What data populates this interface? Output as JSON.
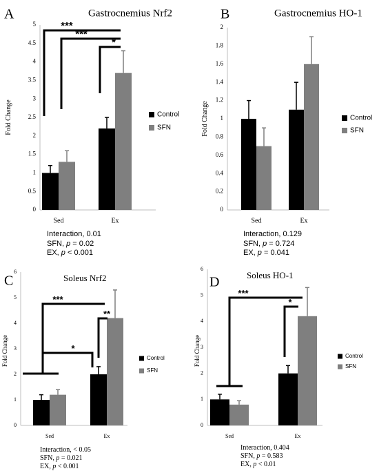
{
  "chart_data": [
    {
      "type": "bar",
      "panel_label": "A",
      "title": "Gastrocnemius Nrf2",
      "ylabel": "Fold Change",
      "categories": [
        "Sed",
        "Ex"
      ],
      "ylim": [
        0,
        5
      ],
      "yticks": [
        "0",
        "0.5",
        "1",
        "1.5",
        "2",
        "2.5",
        "3",
        "3.5",
        "4",
        "4.5",
        "5"
      ],
      "series": [
        {
          "name": "Control",
          "color": "#000000",
          "values": [
            1.0,
            2.2
          ],
          "errors": [
            0.2,
            0.3
          ]
        },
        {
          "name": "SFN",
          "color": "#7f7f7f",
          "values": [
            1.3,
            3.7
          ],
          "errors": [
            0.3,
            0.6
          ]
        }
      ],
      "significance": [
        "***",
        "***",
        "*"
      ],
      "stats": [
        {
          "label": "Interaction, 0.01",
          "pre": "",
          "p": "",
          "post": ""
        },
        {
          "label": "",
          "pre": "SFN, ",
          "p": "p",
          "post": " = 0.02"
        },
        {
          "label": "",
          "pre": "EX, ",
          "p": "p",
          "post": " < 0.001"
        }
      ]
    },
    {
      "type": "bar",
      "panel_label": "B",
      "title": "Gastrocnemius HO-1",
      "ylabel": "Fold Change",
      "categories": [
        "Sed",
        "Ex"
      ],
      "ylim": [
        0,
        2
      ],
      "yticks": [
        "0",
        "0.2",
        "0.4",
        "0.6",
        "0.8",
        "1",
        "1.2",
        "1.4",
        "1.6",
        "1.8",
        "2"
      ],
      "series": [
        {
          "name": "Control",
          "color": "#000000",
          "values": [
            1.0,
            1.1
          ],
          "errors": [
            0.2,
            0.3
          ]
        },
        {
          "name": "SFN",
          "color": "#7f7f7f",
          "values": [
            0.7,
            1.6
          ],
          "errors": [
            0.2,
            0.3
          ]
        }
      ],
      "significance": [],
      "stats": [
        {
          "label": "Interaction, 0.129",
          "pre": "",
          "p": "",
          "post": ""
        },
        {
          "label": "",
          "pre": "SFN, ",
          "p": "p",
          "post": " = 0.724"
        },
        {
          "label": "",
          "pre": "EX, ",
          "p": "p",
          "post": " = 0.041"
        }
      ]
    },
    {
      "type": "bar",
      "panel_label": "C",
      "title": "Soleus Nrf2",
      "ylabel": "Fold Change",
      "categories": [
        "Sed",
        "Ex"
      ],
      "ylim": [
        0,
        6
      ],
      "yticks": [
        "0",
        "1",
        "2",
        "3",
        "4",
        "5",
        "6"
      ],
      "series": [
        {
          "name": "Control",
          "color": "#000000",
          "values": [
            1.0,
            2.0
          ],
          "errors": [
            0.2,
            0.3
          ]
        },
        {
          "name": "SFN",
          "color": "#7f7f7f",
          "values": [
            1.2,
            4.2
          ],
          "errors": [
            0.2,
            1.1
          ]
        }
      ],
      "significance": [
        "***",
        "*",
        "**"
      ],
      "stats": [
        {
          "label": "Interaction, < 0.05",
          "pre": "",
          "p": "",
          "post": ""
        },
        {
          "label": "",
          "pre": "SFN, ",
          "p": "p",
          "post": " = 0.021"
        },
        {
          "label": "",
          "pre": "EX, ",
          "p": "p",
          "post": " < 0.001"
        }
      ]
    },
    {
      "type": "bar",
      "panel_label": "D",
      "title": "Soleus HO-1",
      "ylabel": "Fold Change",
      "categories": [
        "Sed",
        "Ex"
      ],
      "ylim": [
        0,
        6
      ],
      "yticks": [
        "0",
        "1",
        "2",
        "3",
        "4",
        "5",
        "6"
      ],
      "series": [
        {
          "name": "Control",
          "color": "#000000",
          "values": [
            1.0,
            2.0
          ],
          "errors": [
            0.2,
            0.3
          ]
        },
        {
          "name": "SFN",
          "color": "#7f7f7f",
          "values": [
            0.8,
            4.2
          ],
          "errors": [
            0.15,
            1.1
          ]
        }
      ],
      "significance": [
        "***",
        "*"
      ],
      "stats": [
        {
          "label": "Interaction, 0.404",
          "pre": "",
          "p": "",
          "post": ""
        },
        {
          "label": "",
          "pre": "SFN, ",
          "p": "p",
          "post": " = 0.583"
        },
        {
          "label": "",
          "pre": "EX, ",
          "p": "p",
          "post": " < 0.01"
        }
      ]
    }
  ]
}
